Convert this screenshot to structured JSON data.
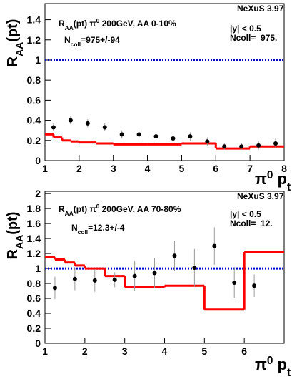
{
  "chart_data": [
    {
      "type": "scatter",
      "ylabel": [
        {
          "text": "R"
        },
        {
          "text": "AA",
          "sub": true
        },
        {
          "text": "(pt)"
        }
      ],
      "xlabel": [
        {
          "text": "π"
        },
        {
          "text": "0",
          "sup": true
        },
        {
          "text": " p"
        },
        {
          "text": "t",
          "sub": true
        }
      ],
      "annotations": [
        [
          {
            "text": "R"
          },
          {
            "text": "AA",
            "sub": true
          },
          {
            "text": "(pt) π"
          },
          {
            "text": "0",
            "sup": true
          },
          {
            "text": " 200GeV, AA 0-10%"
          }
        ],
        [
          {
            "text": "N"
          },
          {
            "text": "coll",
            "sub": true
          },
          {
            "text": "=975+/-94"
          }
        ],
        [
          {
            "text": "NeXuS 3.97"
          }
        ],
        [
          {
            "text": "|y| < 0.5"
          }
        ],
        [
          {
            "text": "Ncoll=  975."
          }
        ]
      ],
      "xlim": [
        1,
        8
      ],
      "xticks": [
        1,
        2,
        3,
        4,
        5,
        6,
        7,
        8
      ],
      "ylim": [
        0,
        1.56
      ],
      "yticks": [
        0,
        0.2,
        0.4,
        0.6,
        0.8,
        1,
        1.2,
        1.4
      ],
      "reference": {
        "value": 1,
        "color": "#0000cc"
      },
      "points": {
        "color": "#000000",
        "x": [
          1.25,
          1.75,
          2.25,
          2.75,
          3.25,
          3.75,
          4.25,
          4.75,
          5.25,
          5.75,
          6.25,
          6.75,
          7.25,
          7.75
        ],
        "values": [
          0.33,
          0.4,
          0.37,
          0.33,
          0.26,
          0.26,
          0.24,
          0.22,
          0.24,
          0.19,
          0.14,
          0.14,
          0.15,
          0.17
        ],
        "errors": [
          0.04,
          0.04,
          0.04,
          0.04,
          0.04,
          0.04,
          0.04,
          0.04,
          0.04,
          0.04,
          0.03,
          0.03,
          0.04,
          0.05
        ]
      },
      "histogram": {
        "color": "#ff0000",
        "bins": [
          1,
          1.25,
          1.5,
          1.75,
          2,
          2.5,
          3,
          4,
          5,
          6,
          7,
          8
        ],
        "values": [
          0.26,
          0.23,
          0.2,
          0.19,
          0.18,
          0.17,
          0.16,
          0.16,
          0.17,
          0.12,
          0.14
        ]
      }
    },
    {
      "type": "scatter",
      "ylabel": [
        {
          "text": "R"
        },
        {
          "text": "AA",
          "sub": true
        },
        {
          "text": "(pt)"
        }
      ],
      "xlabel": [
        {
          "text": "π"
        },
        {
          "text": "0",
          "sup": true
        },
        {
          "text": " p"
        },
        {
          "text": "t",
          "sub": true
        }
      ],
      "annotations": [
        [
          {
            "text": "R"
          },
          {
            "text": "AA",
            "sub": true
          },
          {
            "text": "(pt) π"
          },
          {
            "text": "0",
            "sup": true
          },
          {
            "text": " 200GeV, AA 70-80%"
          }
        ],
        [
          {
            "text": "N"
          },
          {
            "text": "coll",
            "sub": true
          },
          {
            "text": "=12.3+/-4"
          }
        ],
        [
          {
            "text": "NeXuS 3.97"
          }
        ],
        [
          {
            "text": "|y| < 0.5"
          }
        ],
        [
          {
            "text": "Ncoll=  12."
          }
        ]
      ],
      "xlim": [
        1,
        7
      ],
      "xticks": [
        1,
        2,
        3,
        4,
        5,
        6
      ],
      "ylim": [
        0,
        2.03
      ],
      "yticks": [
        0,
        0.2,
        0.4,
        0.6,
        0.8,
        1,
        1.2,
        1.4,
        1.6,
        1.8,
        2
      ],
      "reference": {
        "value": 1,
        "color": "#0000cc"
      },
      "points": {
        "color": "#000000",
        "x": [
          1.25,
          1.75,
          2.25,
          2.75,
          3.25,
          3.75,
          4.25,
          4.75,
          5.25,
          5.75,
          6.25
        ],
        "values": [
          0.74,
          0.86,
          0.84,
          0.85,
          0.9,
          0.94,
          1.17,
          1.01,
          1.3,
          0.81,
          0.77
        ],
        "errors": [
          0.15,
          0.15,
          0.15,
          0.1,
          0.2,
          0.2,
          0.2,
          0.25,
          0.25,
          0.2,
          0.15
        ]
      },
      "histogram": {
        "color": "#ff0000",
        "bins": [
          1,
          1.25,
          1.5,
          1.75,
          2,
          2.5,
          3,
          4,
          5,
          6,
          7
        ],
        "values": [
          1.15,
          1.12,
          1.08,
          1.04,
          1.0,
          0.9,
          0.75,
          0.77,
          0.45,
          1.22
        ]
      }
    }
  ]
}
